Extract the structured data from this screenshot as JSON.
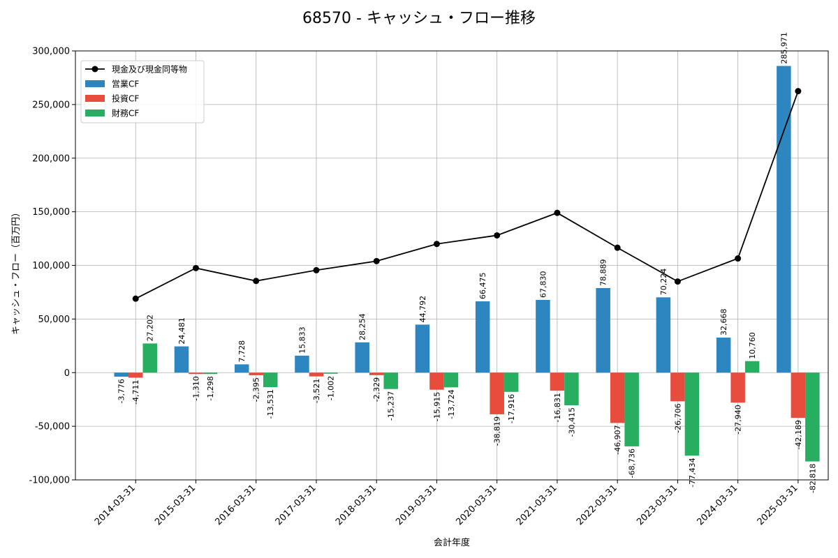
{
  "chart_data": {
    "type": "bar",
    "title": "68570 - キャッシュ・フロー推移",
    "xlabel": "会計年度",
    "ylabel": "キャッシュ・フロー（百万円）",
    "ylim": [
      -100000,
      300000
    ],
    "yticks": [
      -100000,
      -50000,
      0,
      50000,
      100000,
      150000,
      200000,
      250000,
      300000
    ],
    "ytick_labels": [
      "-100,000",
      "-50,000",
      "0",
      "50,000",
      "100,000",
      "150,000",
      "200,000",
      "250,000",
      "300,000"
    ],
    "grid": true,
    "legend_position": "top-left",
    "categories": [
      "2014-03-31",
      "2015-03-31",
      "2016-03-31",
      "2017-03-31",
      "2018-03-31",
      "2019-03-31",
      "2020-03-31",
      "2021-03-31",
      "2022-03-31",
      "2023-03-31",
      "2024-03-31",
      "2025-03-31"
    ],
    "line_series": {
      "name": "現金及び現金同等物",
      "color": "#000000",
      "values": [
        69000,
        97500,
        85500,
        95500,
        104000,
        120000,
        128000,
        149000,
        116500,
        85000,
        106500,
        262500
      ]
    },
    "series": [
      {
        "name": "営業CF",
        "color": "#2e86c1",
        "values": [
          -3776,
          24481,
          7728,
          15833,
          28254,
          44792,
          66475,
          67830,
          78889,
          70224,
          32668,
          285971
        ],
        "labels": [
          "-3,776",
          "24,481",
          "7,728",
          "15,833",
          "28,254",
          "44,792",
          "66,475",
          "67,830",
          "78,889",
          "70,224",
          "32,668",
          "285,971"
        ]
      },
      {
        "name": "投資CF",
        "color": "#e74c3c",
        "values": [
          -4711,
          -1310,
          -2395,
          -3521,
          -2329,
          -15915,
          -38819,
          -16831,
          -46907,
          -26706,
          -27940,
          -42189
        ],
        "labels": [
          "-4,711",
          "-1,310",
          "-2,395",
          "-3,521",
          "-2,329",
          "-15,915",
          "-38,819",
          "-16,831",
          "-46,907",
          "-26,706",
          "-27,940",
          "-42,189"
        ]
      },
      {
        "name": "財務CF",
        "color": "#27ae60",
        "values": [
          27202,
          -1298,
          -13531,
          -1002,
          -15237,
          -13724,
          -17916,
          -30415,
          -68736,
          -77434,
          10760,
          -82818
        ],
        "labels": [
          "27,202",
          "-1,298",
          "-13,531",
          "-1,002",
          "-15,237",
          "-13,724",
          "-17,916",
          "-30,415",
          "-68,736",
          "-77,434",
          "10,760",
          "-82,818"
        ]
      }
    ]
  }
}
